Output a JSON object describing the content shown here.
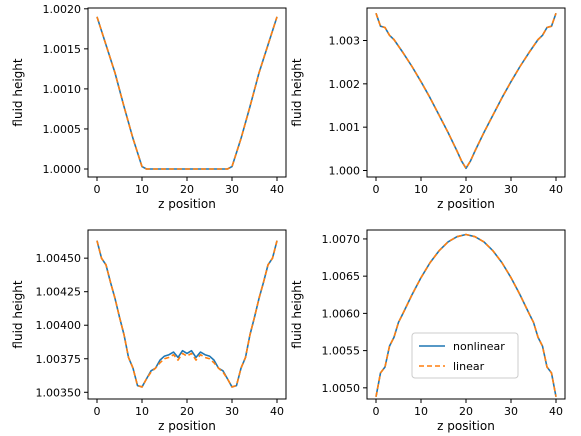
{
  "colors": {
    "nonlinear": "#1f77b4",
    "linear": "#ff7f0e",
    "axes": "#000000",
    "background": "#ffffff"
  },
  "chart_data": [
    {
      "type": "line",
      "xlabel": "z position",
      "ylabel": "fluid height",
      "xlim": [
        -2,
        42
      ],
      "ylim": [
        0.9999,
        1.00201
      ],
      "xticks": [
        0,
        10,
        20,
        30,
        40
      ],
      "xtick_labels": [
        "0",
        "10",
        "20",
        "30",
        "40"
      ],
      "yticks": [
        1.0,
        1.0005,
        1.001,
        1.0015,
        1.002
      ],
      "ytick_labels": [
        "1.0000",
        "1.0005",
        "1.0010",
        "1.0015",
        "1.0020"
      ],
      "grid": false,
      "legend": null,
      "x": [
        0,
        2,
        4,
        6,
        8,
        10,
        11,
        20,
        29,
        30,
        32,
        34,
        36,
        38,
        40
      ],
      "series": [
        {
          "name": "nonlinear",
          "style": "solid",
          "values": [
            1.0019,
            1.00155,
            1.0012,
            1.00078,
            1.00038,
            1.00003,
            1.0,
            1.0,
            1.0,
            1.00003,
            1.00038,
            1.00078,
            1.0012,
            1.00155,
            1.0019
          ]
        },
        {
          "name": "linear",
          "style": "dashed",
          "values": [
            1.0019,
            1.00155,
            1.0012,
            1.00078,
            1.00038,
            1.00003,
            1.0,
            1.0,
            1.0,
            1.00003,
            1.00038,
            1.00078,
            1.0012,
            1.00155,
            1.0019
          ]
        }
      ]
    },
    {
      "type": "line",
      "xlabel": "z position",
      "ylabel": "fluid height",
      "xlim": [
        -2,
        42
      ],
      "ylim": [
        0.99985,
        1.00375
      ],
      "xticks": [
        0,
        10,
        20,
        30,
        40
      ],
      "xtick_labels": [
        "0",
        "10",
        "20",
        "30",
        "40"
      ],
      "yticks": [
        1.0,
        1.001,
        1.002,
        1.003
      ],
      "ytick_labels": [
        "1.000",
        "1.001",
        "1.002",
        "1.003"
      ],
      "grid": false,
      "legend": null,
      "x": [
        0,
        1,
        2,
        3,
        4,
        6,
        8,
        10,
        12,
        14,
        16,
        18,
        19,
        20,
        21,
        22,
        24,
        26,
        28,
        30,
        32,
        34,
        36,
        37,
        38,
        39,
        40
      ],
      "series": [
        {
          "name": "nonlinear",
          "style": "solid",
          "values": [
            1.00363,
            1.00333,
            1.0033,
            1.00312,
            1.00302,
            1.00272,
            1.0024,
            1.00205,
            1.00168,
            1.00128,
            1.00088,
            1.00045,
            1.00022,
            1.00005,
            1.00022,
            1.00045,
            1.00088,
            1.00128,
            1.00168,
            1.00205,
            1.0024,
            1.00272,
            1.00302,
            1.00312,
            1.0033,
            1.00333,
            1.00363
          ]
        },
        {
          "name": "linear",
          "style": "dashed",
          "values": [
            1.00363,
            1.00333,
            1.0033,
            1.00312,
            1.00302,
            1.00272,
            1.0024,
            1.00205,
            1.00168,
            1.00128,
            1.00088,
            1.00045,
            1.00022,
            1.00005,
            1.00022,
            1.00045,
            1.00088,
            1.00128,
            1.00168,
            1.00205,
            1.0024,
            1.00272,
            1.00302,
            1.00312,
            1.0033,
            1.00333,
            1.00363
          ]
        }
      ]
    },
    {
      "type": "line",
      "xlabel": "z position",
      "ylabel": "fluid height",
      "xlim": [
        -2,
        42
      ],
      "ylim": [
        1.00345,
        1.00471
      ],
      "xticks": [
        0,
        10,
        20,
        30,
        40
      ],
      "xtick_labels": [
        "0",
        "10",
        "20",
        "30",
        "40"
      ],
      "yticks": [
        1.0035,
        1.00375,
        1.004,
        1.00425,
        1.0045
      ],
      "ytick_labels": [
        "1.00350",
        "1.00375",
        "1.00400",
        "1.00425",
        "1.00450"
      ],
      "grid": false,
      "legend": null,
      "x": [
        0,
        1,
        2,
        3,
        4,
        5,
        6,
        7,
        8,
        9,
        10,
        11,
        12,
        13,
        14,
        15,
        16,
        17,
        18,
        19,
        20,
        21,
        22,
        23,
        24,
        25,
        26,
        27,
        28,
        29,
        30,
        31,
        32,
        33,
        34,
        35,
        36,
        37,
        38,
        39,
        40
      ],
      "series": [
        {
          "name": "nonlinear",
          "style": "solid",
          "values": [
            1.00463,
            1.0045,
            1.00445,
            1.00432,
            1.0042,
            1.00406,
            1.00393,
            1.00376,
            1.00368,
            1.00355,
            1.00354,
            1.0036,
            1.00366,
            1.00368,
            1.00374,
            1.00377,
            1.00378,
            1.0038,
            1.00376,
            1.00381,
            1.00379,
            1.00381,
            1.00376,
            1.0038,
            1.00378,
            1.00377,
            1.00374,
            1.00368,
            1.00366,
            1.0036,
            1.00354,
            1.00355,
            1.00368,
            1.00376,
            1.00393,
            1.00406,
            1.0042,
            1.00432,
            1.00445,
            1.0045,
            1.00463
          ]
        },
        {
          "name": "linear",
          "style": "dashed",
          "values": [
            1.00463,
            1.0045,
            1.00445,
            1.00432,
            1.0042,
            1.00406,
            1.00393,
            1.00376,
            1.00368,
            1.00355,
            1.00354,
            1.0036,
            1.00365,
            1.00368,
            1.00372,
            1.00375,
            1.00376,
            1.00378,
            1.00374,
            1.00379,
            1.00377,
            1.00379,
            1.00374,
            1.00378,
            1.00376,
            1.00375,
            1.00372,
            1.00368,
            1.00365,
            1.0036,
            1.00354,
            1.00355,
            1.00368,
            1.00376,
            1.00393,
            1.00406,
            1.0042,
            1.00432,
            1.00445,
            1.0045,
            1.00463
          ]
        }
      ]
    },
    {
      "type": "line",
      "xlabel": "z position",
      "ylabel": "fluid height",
      "xlim": [
        -2,
        42
      ],
      "ylim": [
        1.00485,
        1.00712
      ],
      "xticks": [
        0,
        10,
        20,
        30,
        40
      ],
      "xtick_labels": [
        "0",
        "10",
        "20",
        "30",
        "40"
      ],
      "yticks": [
        1.005,
        1.0055,
        1.006,
        1.0065,
        1.007
      ],
      "ytick_labels": [
        "1.0050",
        "1.0055",
        "1.0060",
        "1.0065",
        "1.0070"
      ],
      "grid": false,
      "legend": {
        "position": "lower-center"
      },
      "x": [
        0,
        1,
        2,
        3,
        4,
        5,
        6,
        8,
        10,
        12,
        14,
        16,
        18,
        20,
        22,
        24,
        26,
        28,
        30,
        32,
        34,
        35,
        36,
        37,
        38,
        39,
        40
      ],
      "series": [
        {
          "name": "nonlinear",
          "style": "solid",
          "values": [
            1.00488,
            1.0052,
            1.00528,
            1.00556,
            1.00568,
            1.00588,
            1.006,
            1.00625,
            1.00648,
            1.00668,
            1.00684,
            1.00696,
            1.00703,
            1.00706,
            1.00703,
            1.00696,
            1.00684,
            1.00668,
            1.00648,
            1.00625,
            1.006,
            1.00588,
            1.00568,
            1.00556,
            1.00528,
            1.0052,
            1.00488
          ]
        },
        {
          "name": "linear",
          "style": "dashed",
          "values": [
            1.00488,
            1.0052,
            1.00528,
            1.00556,
            1.00568,
            1.00588,
            1.006,
            1.00625,
            1.00648,
            1.00668,
            1.00684,
            1.00696,
            1.00703,
            1.00706,
            1.00703,
            1.00696,
            1.00684,
            1.00668,
            1.00648,
            1.00625,
            1.006,
            1.00588,
            1.00568,
            1.00556,
            1.00528,
            1.0052,
            1.00488
          ]
        }
      ]
    }
  ]
}
